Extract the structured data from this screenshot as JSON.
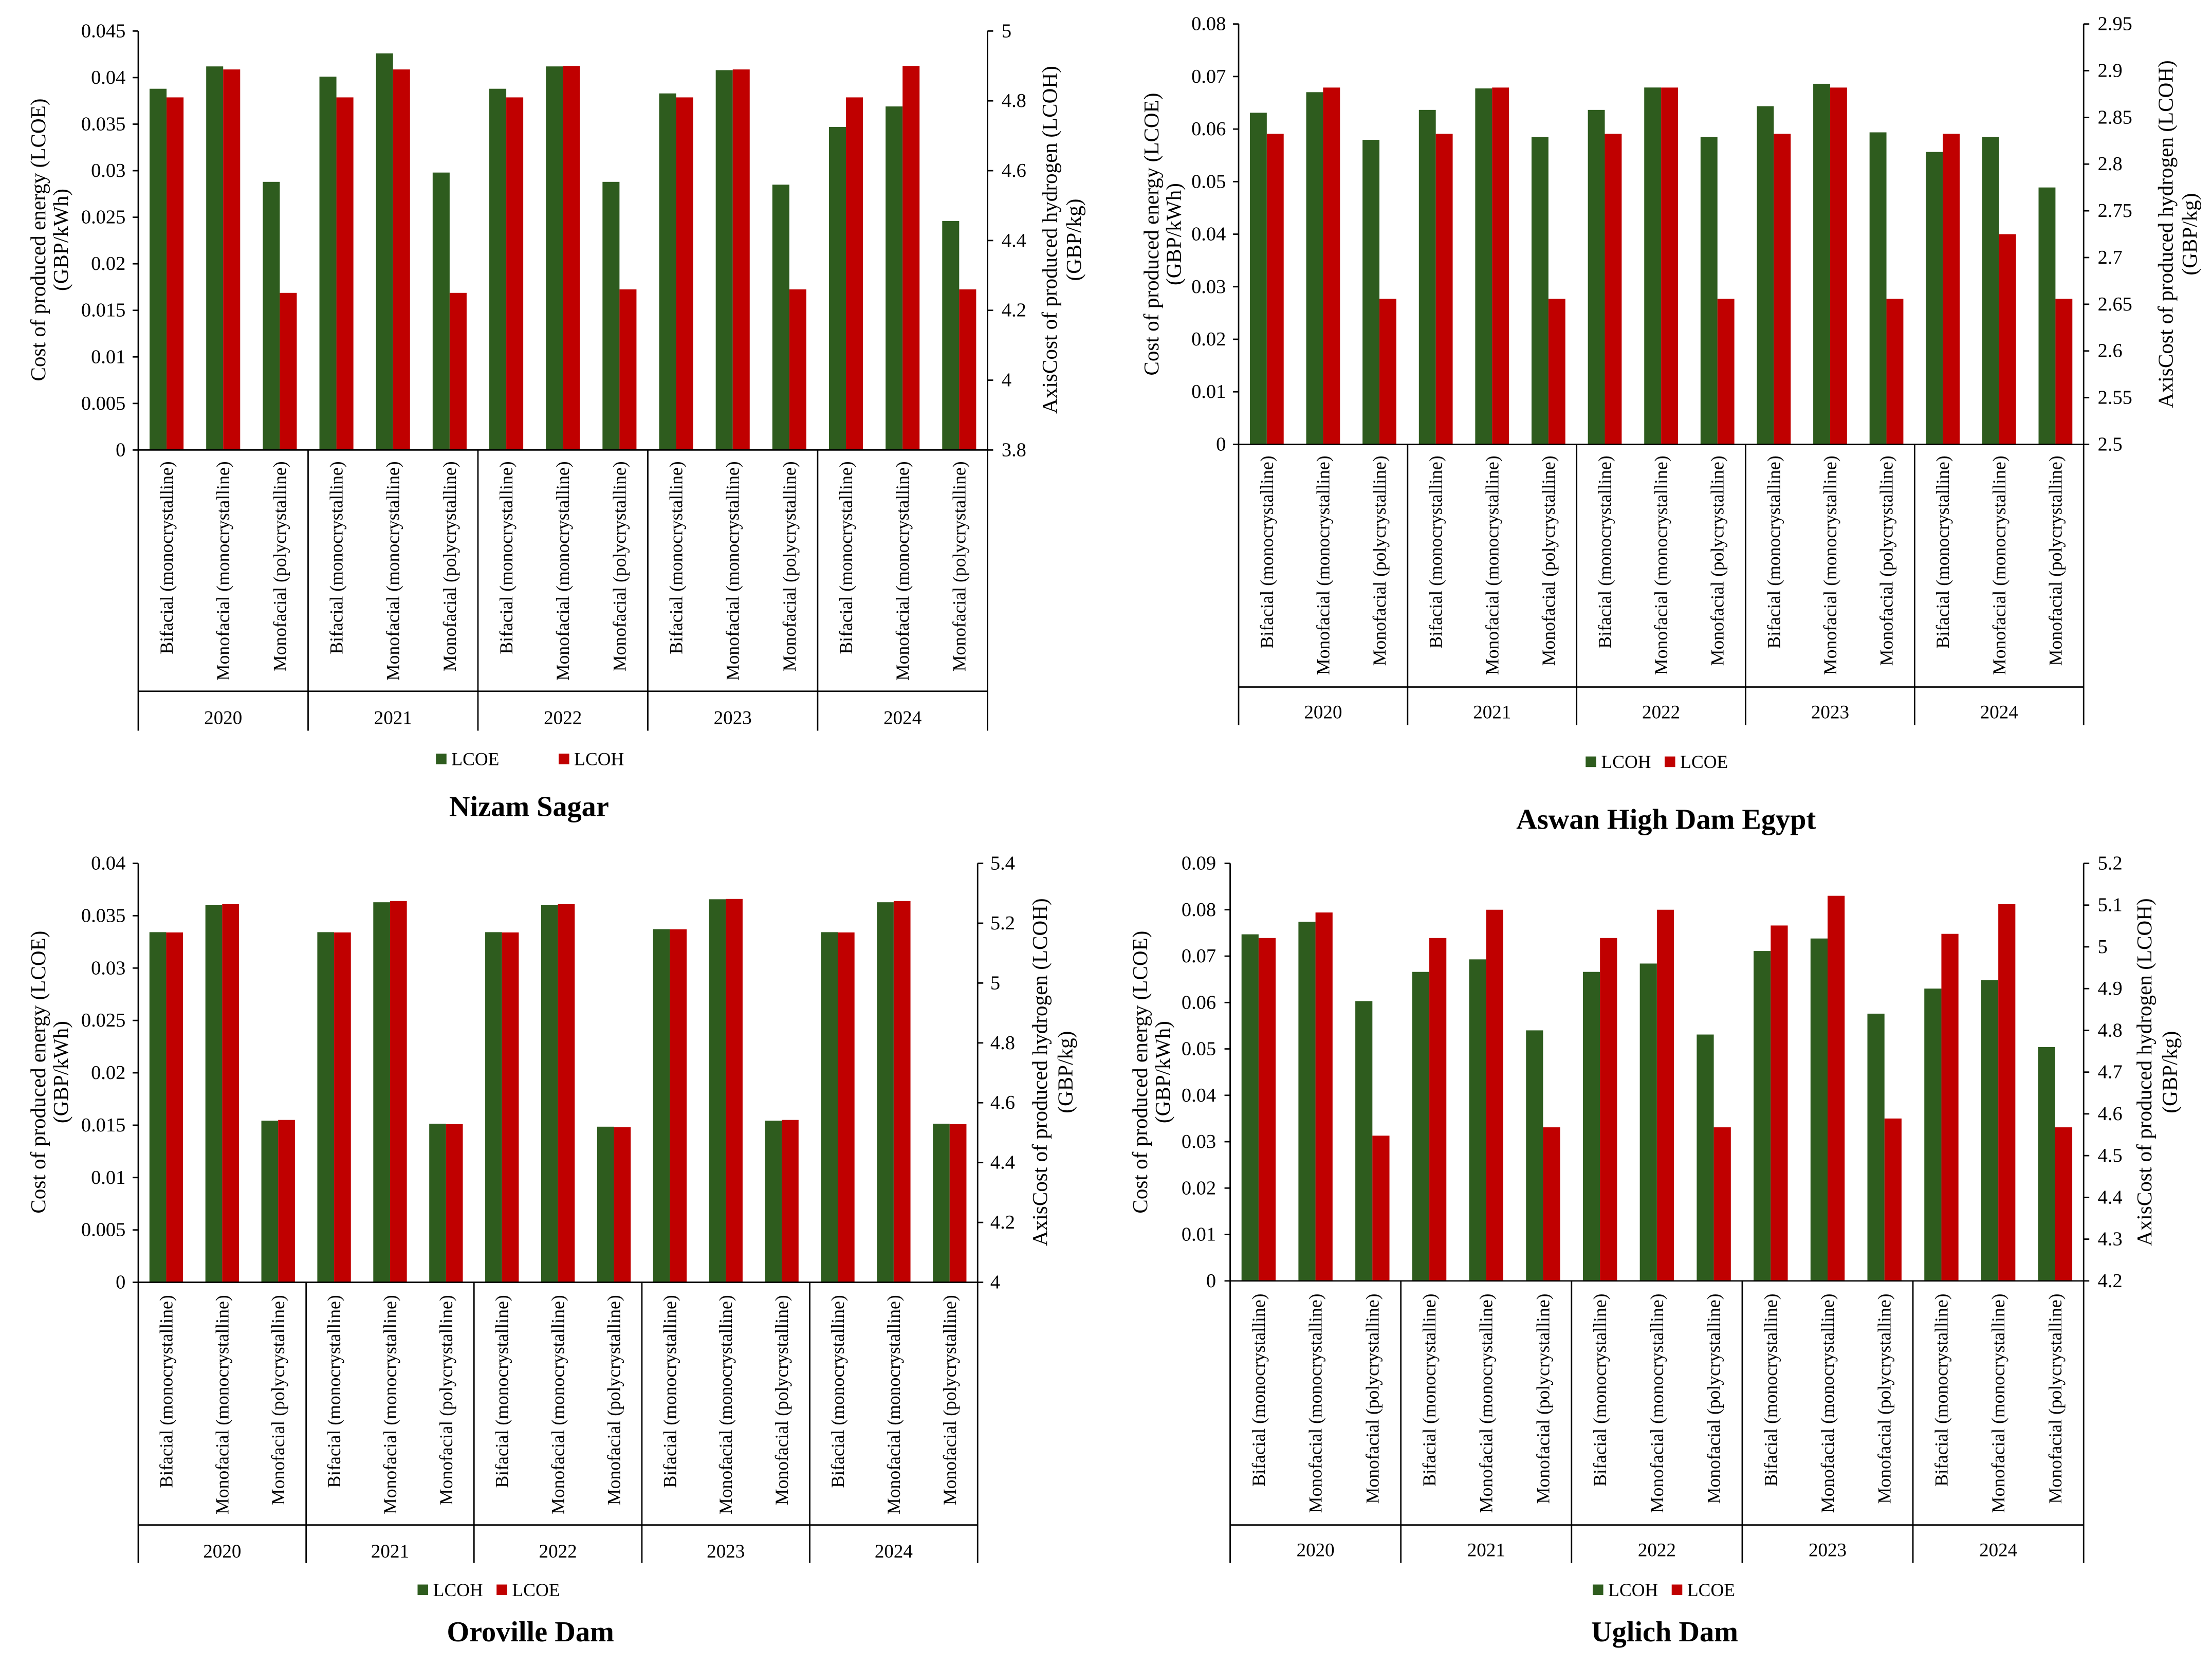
{
  "chart_data": [
    {
      "type": "bar",
      "title": "Nizam Sagar",
      "categories": [
        "Bifacial (monocrystalline)",
        "Monofacial (monocrystalline)",
        "Monofacial (polycrystalline)",
        "Bifacial (monocrystalline)",
        "Monofacial (monocrystalline)",
        "Monofacial (polycrystalline)",
        "Bifacial (monocrystalline)",
        "Monofacial (monocrystalline)",
        "Monofacial (polycrystalline)",
        "Bifacial (monocrystalline)",
        "Monofacial (monocrystalline)",
        "Monofacial (polycrystalline)",
        "Bifacial (monocrystalline)",
        "Monofacial (monocrystalline)",
        "Monofacial (polycrystalline)"
      ],
      "groups": [
        "2020",
        "2021",
        "2022",
        "2023",
        "2024"
      ],
      "ylabel": [
        "Cost of produced energy (LCOE)",
        "(GBP/kWh)"
      ],
      "y2label": [
        "AxisCost of produced hydrogen (LCOH)",
        "(GBP/kg)"
      ],
      "ylim": [
        0,
        0.045
      ],
      "y2lim": [
        3.8,
        5
      ],
      "yticks": [
        "0",
        "0.005",
        "0.01",
        "0.015",
        "0.02",
        "0.025",
        "0.03",
        "0.035",
        "0.04",
        "0.045"
      ],
      "y2ticks": [
        "3.8",
        "4",
        "4.2",
        "4.4",
        "4.6",
        "4.8",
        "5"
      ],
      "series": [
        {
          "name": "LCOE",
          "color": "#2e5c1e",
          "axis_index": 0,
          "values": [
            0.0388,
            0.0412,
            0.0288,
            0.0401,
            0.0426,
            0.0298,
            0.0388,
            0.0412,
            0.0288,
            0.0383,
            0.0408,
            0.0285,
            0.0347,
            0.0369,
            0.0246
          ]
        },
        {
          "name": "LCOH",
          "color": "#c00000",
          "axis_index": 1,
          "values": [
            4.81,
            4.89,
            4.25,
            4.81,
            4.89,
            4.25,
            4.81,
            4.9,
            4.26,
            4.81,
            4.89,
            4.26,
            4.81,
            4.9,
            4.26
          ]
        }
      ]
    },
    {
      "type": "bar",
      "title": "Aswan High Dam Egypt",
      "categories": [
        "Bifacial (monocrystalline)",
        "Monofacial (monocrystalline)",
        "Monofacial (polycrystalline)",
        "Bifacial (monocrystalline)",
        "Monofacial (monocrystalline)",
        "Monofacial (polycrystalline)",
        "Bifacial (monocrystalline)",
        "Monofacial (monocrystalline)",
        "Monofacial (polycrystalline)",
        "Bifacial (monocrystalline)",
        "Monofacial (monocrystalline)",
        "Monofacial (polycrystalline)",
        "Bifacial (monocrystalline)",
        "Monofacial (monocrystalline)",
        "Monofacial (polycrystalline)"
      ],
      "groups": [
        "2020",
        "2021",
        "2022",
        "2023",
        "2024"
      ],
      "ylabel": [
        "Cost of produced energy (LCOE)",
        "(GBP/kWh)"
      ],
      "y2label": [
        "AxisCost of produced hydrogen (LCOH)",
        "(GBP/kg)"
      ],
      "ylim": [
        0,
        0.08
      ],
      "y2lim": [
        2.5,
        2.95
      ],
      "yticks": [
        "0",
        "0.01",
        "0.02",
        "0.03",
        "0.04",
        "0.05",
        "0.06",
        "0.07",
        "0.08"
      ],
      "y2ticks": [
        "2.5",
        "2.55",
        "2.6",
        "2.65",
        "2.7",
        "2.75",
        "2.8",
        "2.85",
        "2.9",
        "2.95"
      ],
      "series": [
        {
          "name": "LCOH",
          "color": "#2e5c1e",
          "axis_index": 1,
          "values": [
            2.855,
            2.877,
            2.826,
            2.858,
            2.881,
            2.829,
            2.858,
            2.882,
            2.829,
            2.862,
            2.886,
            2.834,
            2.813,
            2.829,
            2.775
          ]
        },
        {
          "name": "LCOE",
          "color": "#c00000",
          "axis_index": 0,
          "values": [
            0.0591,
            0.0679,
            0.0277,
            0.0591,
            0.0679,
            0.0277,
            0.0591,
            0.0679,
            0.0277,
            0.0591,
            0.0679,
            0.0277,
            0.0591,
            0.04,
            0.0277
          ]
        }
      ]
    },
    {
      "type": "bar",
      "title": "Oroville Dam",
      "categories": [
        "Bifacial (monocrystalline)",
        "Monofacial (monocrystalline)",
        "Monofacial (polycrystalline)",
        "Bifacial (monocrystalline)",
        "Monofacial (monocrystalline)",
        "Monofacial (polycrystalline)",
        "Bifacial (monocrystalline)",
        "Monofacial (monocrystalline)",
        "Monofacial (polycrystalline)",
        "Bifacial (monocrystalline)",
        "Monofacial (monocrystalline)",
        "Monofacial (polycrystalline)",
        "Bifacial (monocrystalline)",
        "Monofacial (monocrystalline)",
        "Monofacial (polycrystalline)"
      ],
      "groups": [
        "2020",
        "2021",
        "2022",
        "2023",
        "2024"
      ],
      "ylabel": [
        "Cost of produced energy (LCOE)",
        "(GBP/kWh)"
      ],
      "y2label": [
        "AxisCost of produced hydrogen (LCOH)",
        "(GBP/kg)"
      ],
      "ylim": [
        0,
        0.04
      ],
      "y2lim": [
        4,
        5.4
      ],
      "yticks": [
        "0",
        "0.005",
        "0.01",
        "0.015",
        "0.02",
        "0.025",
        "0.03",
        "0.035",
        "0.04"
      ],
      "y2ticks": [
        "4",
        "4.2",
        "4.4",
        "4.6",
        "4.8",
        "5",
        "5.2",
        "5.4"
      ],
      "series": [
        {
          "name": "LCOH",
          "color": "#2e5c1e",
          "axis_index": 1,
          "values": [
            5.17,
            5.26,
            4.54,
            5.17,
            5.27,
            4.53,
            5.17,
            5.26,
            4.52,
            5.18,
            5.28,
            4.54,
            5.17,
            5.27,
            4.53
          ]
        },
        {
          "name": "LCOE",
          "color": "#c00000",
          "axis_index": 0,
          "values": [
            0.0334,
            0.0361,
            0.0155,
            0.0334,
            0.0364,
            0.0151,
            0.0334,
            0.0361,
            0.0148,
            0.0337,
            0.0366,
            0.0155,
            0.0334,
            0.0364,
            0.0151
          ]
        }
      ]
    },
    {
      "type": "bar",
      "title": "Uglich Dam",
      "categories": [
        "Bifacial (monocrystalline)",
        "Monofacial (monocrystalline)",
        "Monofacial (polycrystalline)",
        "Bifacial (monocrystalline)",
        "Monofacial (monocrystalline)",
        "Monofacial (polycrystalline)",
        "Bifacial (monocrystalline)",
        "Monofacial (monocrystalline)",
        "Monofacial (polycrystalline)",
        "Bifacial (monocrystalline)",
        "Monofacial (monocrystalline)",
        "Monofacial (polycrystalline)",
        "Bifacial (monocrystalline)",
        "Monofacial (monocrystalline)",
        "Monofacial (polycrystalline)"
      ],
      "groups": [
        "2020",
        "2021",
        "2022",
        "2023",
        "2024"
      ],
      "ylabel": [
        "Cost of produced energy (LCOE)",
        "(GBP/kWh)"
      ],
      "y2label": [
        "AxisCost of produced hydrogen (LCOH)",
        "(GBP/kg)"
      ],
      "ylim": [
        0,
        0.09
      ],
      "y2lim": [
        4.2,
        5.2
      ],
      "yticks": [
        "0",
        "0.01",
        "0.02",
        "0.03",
        "0.04",
        "0.05",
        "0.06",
        "0.07",
        "0.08",
        "0.09"
      ],
      "y2ticks": [
        "4.2",
        "4.3",
        "4.4",
        "4.5",
        "4.6",
        "4.7",
        "4.8",
        "4.9",
        "5",
        "5.1",
        "5.2"
      ],
      "series": [
        {
          "name": "LCOH",
          "color": "#2e5c1e",
          "axis_index": 1,
          "values": [
            5.03,
            5.06,
            4.87,
            4.94,
            4.97,
            4.8,
            4.94,
            4.96,
            4.79,
            4.99,
            5.02,
            4.84,
            4.9,
            4.92,
            4.76
          ]
        },
        {
          "name": "LCOE",
          "color": "#c00000",
          "axis_index": 0,
          "values": [
            0.0739,
            0.0794,
            0.0313,
            0.0739,
            0.08,
            0.0331,
            0.0739,
            0.08,
            0.0331,
            0.0766,
            0.083,
            0.035,
            0.0748,
            0.0812,
            0.0331
          ]
        }
      ]
    }
  ]
}
